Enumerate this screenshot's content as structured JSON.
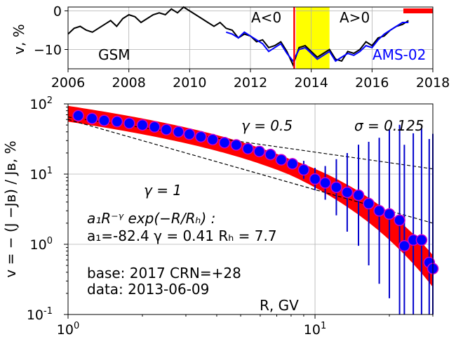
{
  "chart_data": [
    {
      "type": "line",
      "ylabel": "v, %",
      "xlim": [
        2006,
        2018
      ],
      "ylim": [
        -15,
        1
      ],
      "x_ticks": [
        "2006",
        "2008",
        "2010",
        "2012",
        "2014",
        "2016",
        "2018"
      ],
      "y_ticks": [
        "0",
        "−10"
      ],
      "grid": true,
      "annotations": {
        "gsm": "GSM",
        "ams": "AMS-02",
        "a_neg": "A<0",
        "a_pos": "A>0"
      },
      "vline_year": 2013.44,
      "highlight_span": [
        2013.5,
        2014.6
      ],
      "colors": {
        "gsm": "#000000",
        "ams": "#0000ff",
        "vline": "#ff0000",
        "highlight": "#ffff00",
        "marker": "#ff0000"
      },
      "series": [
        {
          "x": [
            2006.0,
            2006.2,
            2006.4,
            2006.6,
            2006.8,
            2007.0,
            2007.2,
            2007.4,
            2007.6,
            2007.8,
            2008.0,
            2008.2,
            2008.4,
            2008.6,
            2008.8,
            2009.0,
            2009.2,
            2009.4,
            2009.6,
            2009.8,
            2010.0,
            2010.2,
            2010.4,
            2010.6,
            2010.8,
            2011.0,
            2011.2,
            2011.4,
            2011.6,
            2011.8,
            2012.0,
            2012.2,
            2012.4,
            2012.6,
            2012.8,
            2013.0,
            2013.2,
            2013.4,
            2013.6,
            2013.8,
            2014.0,
            2014.2,
            2014.4,
            2014.6,
            2014.8,
            2015.0,
            2015.2,
            2015.4,
            2015.6,
            2015.8,
            2016.0,
            2016.2,
            2016.4,
            2016.6,
            2016.8,
            2017.0,
            2017.2
          ],
          "y": [
            -6.0,
            -4.5,
            -4.0,
            -5.0,
            -5.5,
            -4.5,
            -3.5,
            -2.5,
            -4.0,
            -2.0,
            -1.0,
            -1.5,
            -3.0,
            -2.0,
            -1.0,
            -0.5,
            -1.0,
            0.5,
            -0.5,
            1.0,
            0.0,
            -1.0,
            -2.0,
            -3.0,
            -4.0,
            -3.0,
            -4.5,
            -5.0,
            -7.0,
            -6.0,
            -6.5,
            -8.0,
            -7.5,
            -9.5,
            -9.0,
            -8.0,
            -10.5,
            -14.0,
            -9.5,
            -9.0,
            -10.5,
            -12.0,
            -11.0,
            -10.0,
            -12.5,
            -13.0,
            -10.5,
            -11.0,
            -10.0,
            -8.0,
            -9.0,
            -7.0,
            -6.5,
            -5.0,
            -4.0,
            -3.5,
            -2.5
          ]
        },
        {
          "x": [
            2011.2,
            2011.4,
            2011.6,
            2011.8,
            2012.0,
            2012.2,
            2012.4,
            2012.6,
            2012.8,
            2013.0,
            2013.2,
            2013.4,
            2013.6,
            2013.8,
            2014.0,
            2014.2,
            2014.4,
            2014.6,
            2014.8,
            2015.0,
            2015.2,
            2015.4,
            2015.6,
            2015.8,
            2016.0,
            2016.2,
            2016.4,
            2016.6,
            2016.8,
            2017.0,
            2017.2
          ],
          "y": [
            -5.5,
            -6.0,
            -7.0,
            -5.5,
            -6.5,
            -7.5,
            -8.5,
            -10.5,
            -9.5,
            -8.5,
            -11.0,
            -13.0,
            -10.0,
            -9.5,
            -11.0,
            -12.5,
            -11.5,
            -10.5,
            -13.0,
            -12.0,
            -11.0,
            -11.5,
            -10.5,
            -9.0,
            -9.5,
            -7.5,
            -6.0,
            -5.0,
            -4.0,
            -3.0,
            -3.0
          ]
        }
      ]
    },
    {
      "type": "scatter",
      "xlabel": "R, GV",
      "ylabel": "v = − (J −Jʙ) / Jʙ, %",
      "xscale": "log",
      "yscale": "log",
      "xlim": [
        1.0,
        30.0
      ],
      "ylim": [
        0.1,
        100.0
      ],
      "grid": true,
      "x_ticks": [
        "10^0",
        "10^1"
      ],
      "y_ticks": [
        "10^-1",
        "10^0",
        "10^1",
        "10^2"
      ],
      "annotations": {
        "gamma05": "γ = 0.5",
        "sigma": "σ = 0.125",
        "gamma1": "γ = 1",
        "formula": "a₁R⁻ᵞ exp(−R/Rₕ) :",
        "params": "a₁=-82.4  γ = 0.41  Rₕ =  7.7",
        "base": "base: 2017   CRN=+28",
        "data": "data: 2013-06-09"
      },
      "reference_lines": [
        {
          "gamma": 0.5,
          "anchor": [
            1.0,
            65.0
          ]
        },
        {
          "gamma": 1.0,
          "anchor": [
            1.0,
            60.0
          ]
        }
      ],
      "fit": {
        "a1": -82.4,
        "gamma": 0.41,
        "RH": 7.7,
        "sigma": 0.125
      },
      "colors": {
        "band": "#ff0000",
        "marker_fill": "#0000ff",
        "marker_edge": "#cc00cc",
        "error": "#0000cc"
      },
      "points": [
        {
          "x": 1.1,
          "y": 68.0,
          "err": 0
        },
        {
          "x": 1.25,
          "y": 62.0,
          "err": 0
        },
        {
          "x": 1.4,
          "y": 58.0,
          "err": 0
        },
        {
          "x": 1.58,
          "y": 56.0,
          "err": 0
        },
        {
          "x": 1.77,
          "y": 53.0,
          "err": 0
        },
        {
          "x": 2.0,
          "y": 50.0,
          "err": 0
        },
        {
          "x": 2.24,
          "y": 47.0,
          "err": 0
        },
        {
          "x": 2.5,
          "y": 43.0,
          "err": 0
        },
        {
          "x": 2.8,
          "y": 40.0,
          "err": 0
        },
        {
          "x": 3.1,
          "y": 37.0,
          "err": 0
        },
        {
          "x": 3.45,
          "y": 34.0,
          "err": 0
        },
        {
          "x": 3.85,
          "y": 31.0,
          "err": 0
        },
        {
          "x": 4.3,
          "y": 28.0,
          "err": 0
        },
        {
          "x": 4.8,
          "y": 26.0,
          "err": 0
        },
        {
          "x": 5.35,
          "y": 23.0,
          "err": 0
        },
        {
          "x": 5.95,
          "y": 21.0,
          "err": 0
        },
        {
          "x": 6.6,
          "y": 19.0,
          "err": 0
        },
        {
          "x": 7.3,
          "y": 16.0,
          "err": 0
        },
        {
          "x": 8.1,
          "y": 14.0,
          "err": 0.05
        },
        {
          "x": 9.0,
          "y": 11.5,
          "err": 0.08
        },
        {
          "x": 10.0,
          "y": 8.5,
          "err": 0.1
        },
        {
          "x": 11.0,
          "y": 7.5,
          "err": 0.15
        },
        {
          "x": 12.2,
          "y": 6.5,
          "err": 0.25
        },
        {
          "x": 13.5,
          "y": 5.5,
          "err": 0.35
        },
        {
          "x": 15.0,
          "y": 5.0,
          "err": 0.45
        },
        {
          "x": 16.5,
          "y": 3.8,
          "err": 0.55
        },
        {
          "x": 18.2,
          "y": 3.0,
          "err": 0.65
        },
        {
          "x": 20.0,
          "y": 2.7,
          "err": 0.75
        },
        {
          "x": 22.0,
          "y": 2.2,
          "err": 0.85
        },
        {
          "x": 23.0,
          "y": 0.95,
          "err": 0.9
        },
        {
          "x": 25.0,
          "y": 1.15,
          "err": 0.95
        },
        {
          "x": 27.0,
          "y": 1.15,
          "err": 1.0
        },
        {
          "x": 29.0,
          "y": 0.55,
          "err": 1.1
        },
        {
          "x": 30.0,
          "y": 0.45,
          "err": 1.2
        }
      ]
    }
  ]
}
